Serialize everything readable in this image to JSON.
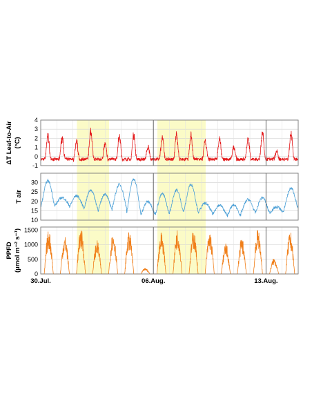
{
  "chart_data": [
    {
      "type": "line",
      "ylabel": "ΔT Leaf-to-Air (°C)",
      "ylabel_lines": [
        "ΔT Leaf-to-Air",
        "(°C)"
      ],
      "ylim": [
        -1,
        4
      ],
      "yticks": [
        -1,
        0,
        1,
        2,
        3,
        4
      ],
      "line_color": "#e41a1c",
      "daily_peaks": [
        2.6,
        2.3,
        1.8,
        3.3,
        1.6,
        2.7,
        2.7,
        1.2,
        2.4,
        2.7,
        2.6,
        1.9,
        2.2,
        1.2,
        2.2,
        3.1,
        0.6,
        3.0
      ],
      "night_baseline": -0.3
    },
    {
      "type": "line",
      "ylabel": "T air",
      "ylim": [
        10,
        35
      ],
      "yticks": [
        10,
        15,
        20,
        25,
        30
      ],
      "line_color": "#4a9fd6",
      "daily_max": [
        31,
        22,
        23,
        26,
        24,
        29,
        32,
        20,
        24,
        26,
        29,
        19,
        18,
        18,
        21,
        22,
        17,
        27
      ],
      "daily_min": [
        17,
        18,
        17,
        16,
        15,
        17,
        14,
        13,
        13,
        14,
        15,
        14,
        13,
        12,
        14,
        14,
        14,
        16
      ]
    },
    {
      "type": "area",
      "ylabel": "PPFD",
      "ylabel_lines": [
        "PPFD",
        "(µmol m⁻² s⁻¹)"
      ],
      "ylim": [
        0,
        1600
      ],
      "yticks": [
        0,
        500,
        1000,
        1500
      ],
      "line_color": "#f07f1a",
      "daily_peak": [
        1500,
        1300,
        1550,
        1150,
        1450,
        1450,
        200,
        1450,
        1550,
        1500,
        1450,
        1050,
        1250,
        1550,
        550,
        1450
      ],
      "x_tick_labels": [
        "30.Jul.",
        "06.Aug.",
        "13.Aug."
      ]
    }
  ],
  "highlight_bands_days": [
    [
      2.25,
      4.25
    ],
    [
      7.25,
      10.25
    ]
  ],
  "highlight_color": "#fbfbc7",
  "x_range_days": [
    0,
    16
  ]
}
